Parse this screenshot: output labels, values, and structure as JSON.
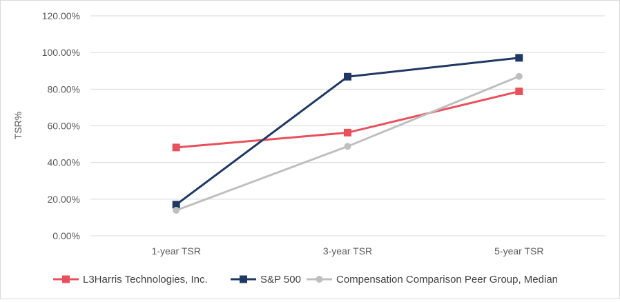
{
  "chart_data": {
    "type": "line",
    "categories": [
      "1-year TSR",
      "3-year TSR",
      "5-year TSR"
    ],
    "series": [
      {
        "name": "L3Harris Technologies, Inc.",
        "color": "#e8505b",
        "marker": "square",
        "values": [
          48.2,
          56.3,
          78.8
        ]
      },
      {
        "name": "S&P 500",
        "color": "#1f3864",
        "marker": "square",
        "values": [
          17.0,
          86.8,
          97.1
        ]
      },
      {
        "name": "Compensation Comparison Peer Group, Median",
        "color": "#bfbfbf",
        "marker": "circle",
        "values": [
          13.9,
          48.8,
          87.0
        ]
      }
    ],
    "ylabel": "TSR%",
    "xlabel": "",
    "ylim": [
      0,
      120
    ],
    "yticks": [
      0,
      20,
      40,
      60,
      80,
      100,
      120
    ],
    "ytick_labels": [
      "0.00%",
      "20.00%",
      "40.00%",
      "60.00%",
      "80.00%",
      "100.00%",
      "120.00%"
    ],
    "grid": true,
    "legend_position": "bottom"
  }
}
